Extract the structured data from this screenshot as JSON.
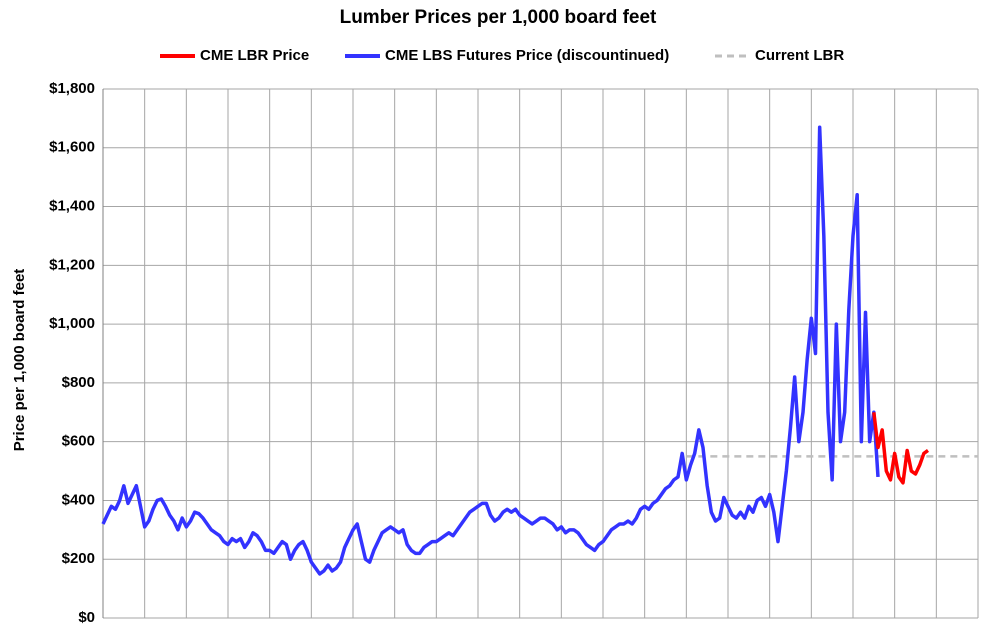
{
  "chart_data": {
    "type": "line",
    "title": "Lumber Prices per 1,000 board feet",
    "y_label": "Price per 1,000 board feet",
    "ylim": [
      0,
      1800
    ],
    "yticks": [
      {
        "value": 0,
        "label": "$0"
      },
      {
        "value": 200,
        "label": "$200"
      },
      {
        "value": 400,
        "label": "$400"
      },
      {
        "value": 600,
        "label": "$600"
      },
      {
        "value": 800,
        "label": "$800"
      },
      {
        "value": 1000,
        "label": "$1,000"
      },
      {
        "value": 1200,
        "label": "$1,200"
      },
      {
        "value": 1400,
        "label": "$1,400"
      },
      {
        "value": 1600,
        "label": "$1,600"
      },
      {
        "value": 1800,
        "label": "$1,800"
      }
    ],
    "grid": true,
    "legend": "top",
    "series": [
      {
        "name": "CME LBR Price",
        "color": "#ff0000",
        "values": [
          null,
          null,
          null,
          null,
          null,
          null,
          null,
          null,
          null,
          null,
          null,
          null,
          null,
          null,
          null,
          null,
          null,
          null,
          null,
          null,
          null,
          null,
          null,
          null,
          null,
          null,
          null,
          null,
          null,
          null,
          null,
          null,
          null,
          null,
          null,
          null,
          null,
          null,
          null,
          null,
          null,
          null,
          null,
          null,
          null,
          null,
          null,
          null,
          null,
          null,
          null,
          null,
          null,
          null,
          null,
          null,
          null,
          null,
          null,
          null,
          null,
          null,
          null,
          null,
          null,
          null,
          null,
          null,
          null,
          null,
          null,
          null,
          null,
          null,
          null,
          null,
          null,
          null,
          null,
          null,
          null,
          null,
          null,
          null,
          null,
          null,
          null,
          null,
          null,
          null,
          null,
          null,
          null,
          null,
          null,
          null,
          null,
          null,
          null,
          null,
          null,
          null,
          null,
          null,
          null,
          null,
          null,
          null,
          null,
          null,
          null,
          null,
          null,
          null,
          null,
          null,
          null,
          null,
          null,
          null,
          null,
          null,
          null,
          null,
          null,
          null,
          null,
          null,
          null,
          null,
          null,
          null,
          null,
          null,
          null,
          null,
          null,
          null,
          null,
          null,
          null,
          null,
          null,
          null,
          null,
          null,
          null,
          null,
          null,
          null,
          null,
          null,
          null,
          null,
          null,
          null,
          null,
          null,
          null,
          null,
          null,
          null,
          null,
          null,
          null,
          null,
          null,
          null,
          null,
          null,
          null,
          null,
          null,
          null,
          null,
          null,
          null,
          null,
          null,
          null,
          null,
          null,
          null,
          null,
          null,
          700,
          580,
          640,
          500,
          470,
          560,
          480,
          460,
          570,
          500,
          490,
          520,
          560,
          570,
          null,
          null,
          null,
          null,
          null,
          null,
          null,
          null,
          null,
          null,
          null,
          null
        ]
      },
      {
        "name": "CME LBS Futures Price (discountinued)",
        "color": "#3333ff",
        "values": [
          320,
          350,
          380,
          370,
          400,
          450,
          390,
          420,
          450,
          380,
          310,
          330,
          370,
          400,
          405,
          380,
          350,
          330,
          300,
          340,
          310,
          330,
          360,
          355,
          340,
          320,
          300,
          290,
          280,
          260,
          250,
          270,
          260,
          270,
          240,
          260,
          290,
          280,
          260,
          230,
          230,
          220,
          240,
          260,
          250,
          200,
          230,
          250,
          260,
          230,
          190,
          170,
          150,
          160,
          180,
          160,
          170,
          190,
          240,
          270,
          300,
          320,
          260,
          200,
          190,
          230,
          260,
          290,
          300,
          310,
          300,
          290,
          300,
          250,
          230,
          220,
          220,
          240,
          250,
          260,
          260,
          270,
          280,
          290,
          280,
          300,
          320,
          340,
          360,
          370,
          380,
          390,
          390,
          350,
          330,
          340,
          360,
          370,
          360,
          370,
          350,
          340,
          330,
          320,
          330,
          340,
          340,
          330,
          320,
          300,
          310,
          290,
          300,
          300,
          290,
          270,
          250,
          240,
          230,
          250,
          260,
          280,
          300,
          310,
          320,
          320,
          330,
          320,
          340,
          370,
          380,
          370,
          390,
          400,
          420,
          440,
          450,
          470,
          480,
          560,
          470,
          520,
          560,
          640,
          580,
          450,
          360,
          330,
          340,
          410,
          380,
          350,
          340,
          360,
          340,
          380,
          360,
          400,
          410,
          380,
          420,
          360,
          260,
          380,
          500,
          650,
          820,
          600,
          700,
          880,
          1020,
          900,
          1670,
          1300,
          700,
          470,
          1000,
          600,
          700,
          1050,
          1300,
          1440,
          600,
          1040,
          600,
          700,
          480,
          null,
          null,
          null,
          null,
          null,
          null,
          null,
          null,
          null,
          null,
          null,
          null,
          null,
          null,
          null,
          null,
          null,
          null,
          null,
          null,
          null,
          null,
          null,
          null
        ]
      },
      {
        "name": "Current LBR",
        "color": "#bfbfbf",
        "dashed": true,
        "values": [
          null,
          null,
          null,
          null,
          null,
          null,
          null,
          null,
          null,
          null,
          null,
          null,
          null,
          null,
          null,
          null,
          null,
          null,
          null,
          null,
          null,
          null,
          null,
          null,
          null,
          null,
          null,
          null,
          null,
          null,
          null,
          null,
          null,
          null,
          null,
          null,
          null,
          null,
          null,
          null,
          null,
          null,
          null,
          null,
          null,
          null,
          null,
          null,
          null,
          null,
          null,
          null,
          null,
          null,
          null,
          null,
          null,
          null,
          null,
          null,
          null,
          null,
          null,
          null,
          null,
          null,
          null,
          null,
          null,
          null,
          null,
          null,
          null,
          null,
          null,
          null,
          null,
          null,
          null,
          null,
          null,
          null,
          null,
          null,
          null,
          null,
          null,
          null,
          null,
          null,
          null,
          null,
          null,
          null,
          null,
          null,
          null,
          null,
          null,
          null,
          null,
          null,
          null,
          null,
          null,
          null,
          null,
          null,
          null,
          null,
          null,
          null,
          null,
          null,
          null,
          null,
          null,
          null,
          null,
          null,
          null,
          null,
          null,
          null,
          null,
          null,
          null,
          null,
          null,
          null,
          null,
          null,
          null,
          null,
          null,
          null,
          null,
          null,
          null,
          null,
          550,
          550,
          550,
          550,
          550,
          550,
          550,
          550,
          550,
          550,
          550,
          550,
          550,
          550,
          550,
          550,
          550,
          550,
          550,
          550,
          550,
          550,
          550,
          550,
          550,
          550,
          550,
          550,
          550,
          550,
          550,
          550,
          550,
          550,
          550,
          550,
          550,
          550,
          550,
          550,
          550,
          550,
          550,
          550,
          550,
          550,
          550,
          550,
          550,
          550,
          550,
          550,
          550,
          550,
          550,
          550,
          550,
          550,
          550,
          550,
          550,
          550,
          550,
          550,
          550,
          550,
          550,
          550,
          550,
          550,
          550
        ]
      }
    ]
  }
}
